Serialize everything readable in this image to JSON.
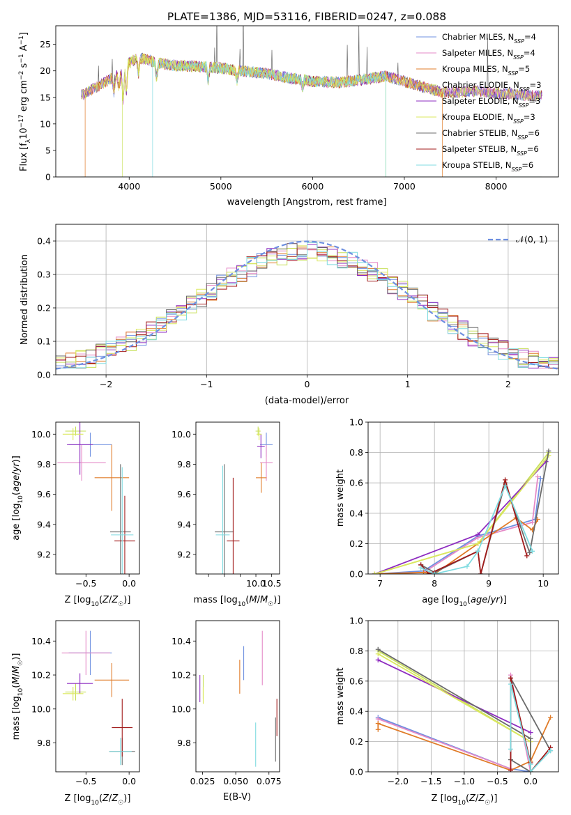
{
  "figure": {
    "title": "PLATE=1386, MJD=53116, FIBERID=0247, z=0.088"
  },
  "colors": {
    "Chabrier MILES": "#6d8fe0",
    "Salpeter MILES": "#e58ac7",
    "Kroupa MILES": "#e07b28",
    "Chabrier ELODIE": "#c8e05a",
    "Salpeter ELODIE": "#8e2cc0",
    "Kroupa ELODIE": "#dbe85e",
    "Chabrier STELIB": "#6b6b6b",
    "Salpeter STELIB": "#a11a1a",
    "Kroupa STELIB": "#7fdbe0",
    "gaussian": "#6d8fe0",
    "grid": "#b0b0b0"
  },
  "chart_data": [
    {
      "id": "spectrum",
      "type": "line",
      "xlabel": "wavelength [Angstrom, rest frame]",
      "ylabel": "Flux [f_λ10^-17 erg cm^-2 s^-1 A^-1]",
      "xlim": [
        3200,
        8680
      ],
      "ylim": [
        0,
        28.5
      ],
      "xticks": [
        4000,
        5000,
        6000,
        7000,
        8000
      ],
      "yticks": [
        0,
        5,
        10,
        15,
        20,
        25
      ],
      "legend_position": "top-right",
      "series": [
        {
          "name": "Chabrier MILES, N_SSP=4",
          "label": "Chabrier MILES, N",
          "sub": "SSP",
          "tail": "=4"
        },
        {
          "name": "Salpeter MILES, N_SSP=4",
          "label": "Salpeter MILES, N",
          "sub": "SSP",
          "tail": "=4"
        },
        {
          "name": "Kroupa MILES, N_SSP=5",
          "label": "Kroupa MILES, N",
          "sub": "SSP",
          "tail": "=5"
        },
        {
          "name": "Chabrier ELODIE, N_SSP=3",
          "label": "Chabrier ELODIE, N",
          "sub": "SSP",
          "tail": "=3"
        },
        {
          "name": "Salpeter ELODIE, N_SSP=3",
          "label": "Salpeter ELODIE, N",
          "sub": "SSP",
          "tail": "=3"
        },
        {
          "name": "Kroupa ELODIE, N_SSP=3",
          "label": "Kroupa ELODIE, N",
          "sub": "SSP",
          "tail": "=3"
        },
        {
          "name": "Chabrier STELIB, N_SSP=6",
          "label": "Chabrier STELIB, N",
          "sub": "SSP",
          "tail": "=6"
        },
        {
          "name": "Salpeter STELIB, N_SSP=6",
          "label": "Salpeter STELIB, N",
          "sub": "SSP",
          "tail": "=6"
        },
        {
          "name": "Kroupa STELIB, N_SSP=6",
          "label": "Kroupa STELIB, N",
          "sub": "SSP",
          "tail": "=6"
        }
      ],
      "continuum": {
        "x": [
          3500,
          3700,
          3900,
          4000,
          4100,
          4300,
          4500,
          4800,
          5000,
          5200,
          5500,
          5800,
          6000,
          6300,
          6600,
          6800,
          7000,
          7200,
          7400,
          7600,
          7800,
          8000,
          8200,
          8400
        ],
        "y": [
          15.5,
          17.5,
          19.5,
          21.5,
          22.5,
          21.5,
          21.0,
          20.8,
          20.5,
          20.0,
          19.5,
          18.5,
          18.0,
          17.8,
          18.5,
          19.0,
          18.0,
          17.0,
          16.0,
          16.0,
          16.2,
          15.8,
          15.6,
          15.3
        ]
      },
      "edges": {
        "Kroupa MILES, N_SSP=5": [
          3520,
          7420
        ],
        "Chabrier ELODIE, N_SSP=3": [
          3920,
          6800
        ],
        "Kroupa STELIB, N_SSP=6": [
          4250,
          6800
        ]
      }
    },
    {
      "id": "residuals",
      "type": "histogram",
      "xlabel": "(data-model)/error",
      "ylabel": "Normed distribution",
      "xlim": [
        -2.5,
        2.5
      ],
      "ylim": [
        0,
        0.45
      ],
      "xticks": [
        -2,
        -1,
        0,
        1,
        2
      ],
      "yticks": [
        0.0,
        0.1,
        0.2,
        0.3,
        0.4
      ],
      "gaussian": {
        "label": "𝒩(0, 1)",
        "mu": 0,
        "sigma": 1
      },
      "bin_width": 0.1
    },
    {
      "id": "age_vs_Z",
      "type": "errorbar",
      "xlabel": "Z [log10(Z/Z☉)]",
      "ylabel": "age  [log10(age/yr)]",
      "xlim": [
        -0.85,
        0.12
      ],
      "ylim": [
        9.07,
        10.08
      ],
      "xticks": [
        -0.5,
        0.0
      ],
      "yticks": [
        9.2,
        9.4,
        9.6,
        9.8,
        10.0
      ],
      "points": [
        {
          "series": "Chabrier MILES",
          "x": -0.45,
          "xerr": 0.25,
          "y": 9.93,
          "yerr": 0.08
        },
        {
          "series": "Salpeter MILES",
          "x": -0.55,
          "xerr": 0.28,
          "y": 9.81,
          "yerr": 0.12
        },
        {
          "series": "Kroupa MILES",
          "x": -0.2,
          "xerr": 0.2,
          "y": 9.71,
          "yerr": 0.22
        },
        {
          "series": "Chabrier ELODIE",
          "x": -0.62,
          "xerr": 0.12,
          "y": 10.02,
          "yerr": 0.03
        },
        {
          "series": "Salpeter ELODIE",
          "x": -0.57,
          "xerr": 0.15,
          "y": 9.93,
          "yerr": 0.2
        },
        {
          "series": "Kroupa ELODIE",
          "x": -0.65,
          "xerr": 0.12,
          "y": 10.0,
          "yerr": 0.04
        },
        {
          "series": "Chabrier STELIB",
          "x": -0.1,
          "xerr": 0.12,
          "y": 9.35,
          "yerr": 0.45
        },
        {
          "series": "Salpeter STELIB",
          "x": -0.05,
          "xerr": 0.12,
          "y": 9.29,
          "yerr": 0.3
        },
        {
          "series": "Kroupa STELIB",
          "x": -0.08,
          "xerr": 0.13,
          "y": 9.33,
          "yerr": 0.45
        }
      ]
    },
    {
      "id": "age_vs_mass",
      "type": "errorbar",
      "xlabel": "mass [log10(M/M☉)]",
      "xlim": [
        8.1,
        10.75
      ],
      "ylim": [
        9.07,
        10.08
      ],
      "xticks": [
        8.5,
        9.0,
        9.5,
        10.0,
        10.5
      ],
      "xticklabels": [
        "",
        "",
        "",
        "10.0",
        "10.5"
      ],
      "yticks": [
        9.2,
        9.4,
        9.6,
        9.8,
        10.0
      ],
      "points": [
        {
          "series": "Chabrier MILES",
          "x": 10.33,
          "xerr": 0.2,
          "y": 9.93,
          "yerr": 0.08
        },
        {
          "series": "Salpeter MILES",
          "x": 10.33,
          "xerr": 0.2,
          "y": 9.81,
          "yerr": 0.12
        },
        {
          "series": "Kroupa MILES",
          "x": 10.17,
          "xerr": 0.17,
          "y": 9.71,
          "yerr": 0.1
        },
        {
          "series": "Chabrier ELODIE",
          "x": 10.07,
          "xerr": 0.08,
          "y": 10.02,
          "yerr": 0.03
        },
        {
          "series": "Salpeter ELODIE",
          "x": 10.16,
          "xerr": 0.12,
          "y": 9.92,
          "yerr": 0.08
        },
        {
          "series": "Kroupa ELODIE",
          "x": 10.1,
          "xerr": 0.08,
          "y": 10.0,
          "yerr": 0.04
        },
        {
          "series": "Chabrier STELIB",
          "x": 9.0,
          "xerr": 0.3,
          "y": 9.35,
          "yerr": 0.45
        },
        {
          "series": "Salpeter STELIB",
          "x": 9.28,
          "xerr": 0.2,
          "y": 9.29,
          "yerr": 0.42
        },
        {
          "series": "Kroupa STELIB",
          "x": 8.95,
          "xerr": 0.22,
          "y": 9.33,
          "yerr": 0.46
        }
      ]
    },
    {
      "id": "weight_vs_age",
      "type": "line",
      "xlabel": "age  [log10(age/yr)]",
      "ylabel": "mass weight",
      "xlim": [
        6.78,
        10.28
      ],
      "ylim": [
        0,
        1.0
      ],
      "xticks": [
        7,
        8,
        9,
        10
      ],
      "yticks": [
        0.0,
        0.2,
        0.4,
        0.6,
        0.8,
        1.0
      ],
      "series": [
        {
          "series": "Chabrier MILES",
          "x": [
            6.9,
            7.8,
            8.8,
            9.85,
            9.95
          ],
          "y": [
            0.0,
            0.02,
            0.25,
            0.36,
            0.63
          ]
        },
        {
          "series": "Salpeter MILES",
          "x": [
            6.9,
            7.8,
            8.8,
            9.8,
            9.9
          ],
          "y": [
            0.0,
            0.01,
            0.24,
            0.34,
            0.64
          ]
        },
        {
          "series": "Kroupa MILES",
          "x": [
            6.9,
            7.8,
            8.0,
            8.8,
            9.5,
            9.8,
            9.9
          ],
          "y": [
            0.0,
            0.01,
            0.0,
            0.2,
            0.37,
            0.29,
            0.36
          ]
        },
        {
          "series": "Chabrier ELODIE",
          "x": [
            6.9,
            8.8,
            10.1
          ],
          "y": [
            0.0,
            0.2,
            0.8
          ]
        },
        {
          "series": "Salpeter ELODIE",
          "x": [
            6.9,
            8.8,
            10.05
          ],
          "y": [
            0.0,
            0.26,
            0.74
          ]
        },
        {
          "series": "Kroupa ELODIE",
          "x": [
            6.9,
            8.8,
            10.1
          ],
          "y": [
            0.0,
            0.2,
            0.78
          ]
        },
        {
          "series": "Chabrier STELIB",
          "x": [
            7.75,
            8.0,
            8.8,
            8.85,
            9.3,
            9.75,
            10.1
          ],
          "y": [
            0.06,
            0.01,
            0.15,
            0.0,
            0.6,
            0.14,
            0.81
          ]
        },
        {
          "series": "Salpeter STELIB",
          "x": [
            7.75,
            7.9,
            8.8,
            8.85,
            9.3,
            9.7
          ],
          "y": [
            0.06,
            0.0,
            0.15,
            0.0,
            0.62,
            0.12
          ]
        },
        {
          "series": "Kroupa STELIB",
          "x": [
            7.75,
            8.0,
            8.6,
            8.8,
            9.3,
            9.8
          ],
          "y": [
            0.04,
            0.0,
            0.05,
            0.15,
            0.58,
            0.15
          ]
        }
      ]
    },
    {
      "id": "mass_vs_Z",
      "type": "errorbar",
      "xlabel": "Z [log10(Z/Z☉)]",
      "ylabel": "mass [log10(M/M☉)]",
      "xlim": [
        -0.85,
        0.12
      ],
      "ylim": [
        9.63,
        10.52
      ],
      "xticks": [
        -0.5,
        0.0
      ],
      "yticks": [
        9.8,
        10.0,
        10.2,
        10.4
      ],
      "points": [
        {
          "series": "Chabrier MILES",
          "x": -0.45,
          "xerr": 0.25,
          "y": 10.33,
          "yerr": 0.13
        },
        {
          "series": "Salpeter MILES",
          "x": -0.5,
          "xerr": 0.28,
          "y": 10.33,
          "yerr": 0.13
        },
        {
          "series": "Kroupa MILES",
          "x": -0.2,
          "xerr": 0.2,
          "y": 10.17,
          "yerr": 0.1
        },
        {
          "series": "Chabrier ELODIE",
          "x": -0.62,
          "xerr": 0.12,
          "y": 10.1,
          "yerr": 0.05
        },
        {
          "series": "Salpeter ELODIE",
          "x": -0.57,
          "xerr": 0.15,
          "y": 10.15,
          "yerr": 0.06
        },
        {
          "series": "Kroupa ELODIE",
          "x": -0.65,
          "xerr": 0.12,
          "y": 10.09,
          "yerr": 0.04
        },
        {
          "series": "Chabrier STELIB",
          "x": -0.08,
          "xerr": 0.15,
          "y": 9.75,
          "yerr": 0.08
        },
        {
          "series": "Salpeter STELIB",
          "x": -0.08,
          "xerr": 0.12,
          "y": 9.89,
          "yerr": 0.17
        },
        {
          "series": "Kroupa STELIB",
          "x": -0.1,
          "xerr": 0.13,
          "y": 9.75,
          "yerr": 0.08
        }
      ]
    },
    {
      "id": "mass_vs_EBV",
      "type": "errorbar",
      "xlabel": "E(B-V)",
      "xlim": [
        0.02,
        0.083
      ],
      "ylim": [
        9.63,
        10.52
      ],
      "xticks": [
        0.025,
        0.05,
        0.075
      ],
      "xticklabels": [
        "0.025",
        "0.050",
        "0.075"
      ],
      "yticks": [
        9.8,
        10.0,
        10.2,
        10.4
      ],
      "points": [
        {
          "series": "Chabrier MILES",
          "x": 0.056,
          "y": 10.27,
          "yerr": 0.1
        },
        {
          "series": "Salpeter MILES",
          "x": 0.07,
          "y": 10.3,
          "yerr": 0.16
        },
        {
          "series": "Kroupa MILES",
          "x": 0.053,
          "y": 10.19,
          "yerr": 0.1
        },
        {
          "series": "Chabrier ELODIE",
          "x": 0.0255,
          "y": 10.13,
          "yerr": 0.07
        },
        {
          "series": "Salpeter ELODIE",
          "x": 0.023,
          "y": 10.12,
          "yerr": 0.08
        },
        {
          "series": "Kroupa ELODIE",
          "x": 0.0255,
          "y": 10.08,
          "yerr": 0.05
        },
        {
          "series": "Chabrier STELIB",
          "x": 0.08,
          "y": 9.82,
          "yerr": 0.13
        },
        {
          "series": "Salpeter STELIB",
          "x": 0.081,
          "y": 9.95,
          "yerr": 0.11
        },
        {
          "series": "Kroupa STELIB",
          "x": 0.065,
          "y": 9.79,
          "yerr": 0.13
        }
      ]
    },
    {
      "id": "weight_vs_Z",
      "type": "line",
      "xlabel": "Z [log10(Z/Z☉)]",
      "ylabel": "mass weight",
      "xlim": [
        -2.45,
        0.42
      ],
      "ylim": [
        0,
        1.0
      ],
      "xticks": [
        -2.0,
        -1.5,
        -1.0,
        -0.5,
        0.0
      ],
      "yticks": [
        0.0,
        0.2,
        0.4,
        0.6,
        0.8,
        1.0
      ],
      "series": [
        {
          "series": "Chabrier MILES",
          "x": [
            -2.3,
            -0.3,
            0.0
          ],
          "y": [
            0.36,
            0.02,
            0.0
          ]
        },
        {
          "series": "Salpeter MILES",
          "x": [
            -2.3,
            -0.3,
            -0.3,
            0.0
          ],
          "y": [
            0.35,
            0.02,
            0.64,
            0.0
          ]
        },
        {
          "series": "Kroupa MILES",
          "x": [
            -2.3,
            -2.3,
            -0.3,
            0.0,
            0.3
          ],
          "y": [
            0.28,
            0.32,
            0.01,
            0.07,
            0.36
          ]
        },
        {
          "series": "Chabrier ELODIE",
          "x": [
            -2.3,
            0.0,
            0.0
          ],
          "y": [
            0.8,
            0.2,
            0.0
          ]
        },
        {
          "series": "Salpeter ELODIE",
          "x": [
            -2.3,
            0.0
          ],
          "y": [
            0.74,
            0.26
          ]
        },
        {
          "series": "Kroupa ELODIE",
          "x": [
            -2.3,
            0.0,
            0.0
          ],
          "y": [
            0.78,
            0.2,
            0.0
          ]
        },
        {
          "series": "Chabrier STELIB",
          "x": [
            -2.3,
            0.0,
            0.0,
            -0.3,
            -0.3,
            0.3
          ],
          "y": [
            0.81,
            0.22,
            0.0,
            0.08,
            0.62,
            0.14
          ]
        },
        {
          "series": "Salpeter STELIB",
          "x": [
            -0.3,
            -0.3,
            0.0,
            0.0,
            0.3
          ],
          "y": [
            0.01,
            0.62,
            0.06,
            0.0,
            0.16
          ]
        },
        {
          "series": "Kroupa STELIB",
          "x": [
            -0.3,
            -0.3,
            0.0,
            0.0,
            0.3
          ],
          "y": [
            0.15,
            0.58,
            0.05,
            0.0,
            0.14
          ]
        }
      ]
    }
  ]
}
